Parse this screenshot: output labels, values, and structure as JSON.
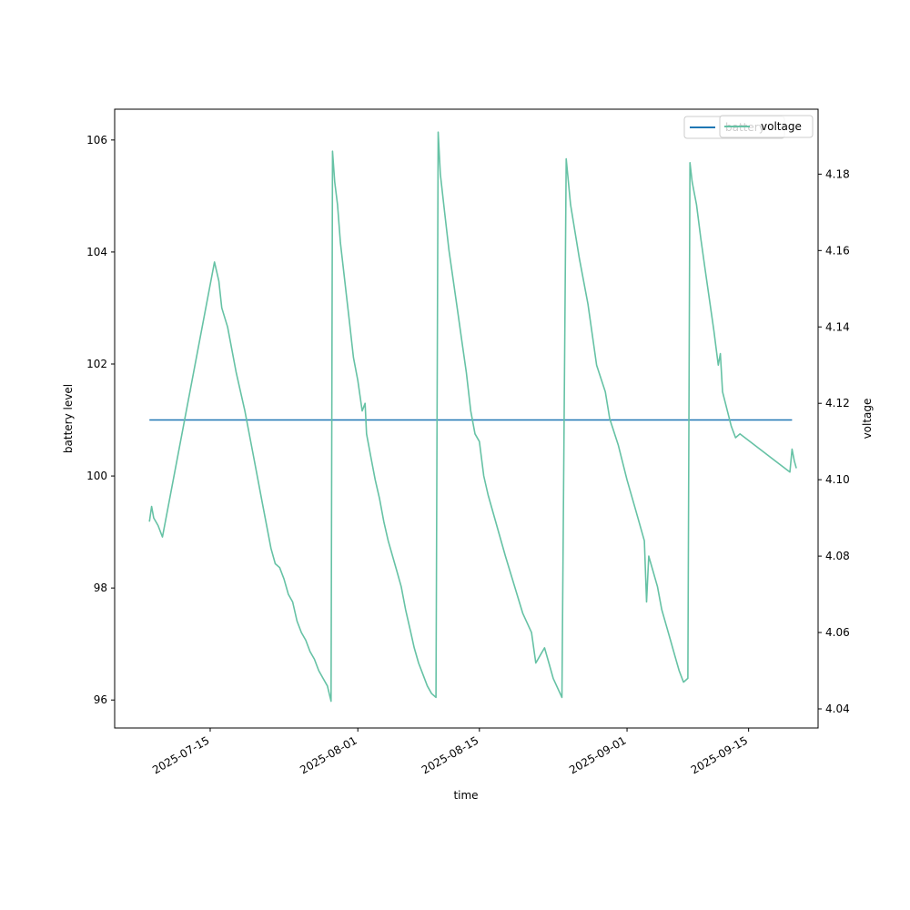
{
  "chart_data": {
    "type": "line",
    "xlabel": "time",
    "ylabel_left": "battery level",
    "ylabel_right": "voltage",
    "x_ticks": [
      "2025-07-15",
      "2025-08-01",
      "2025-08-15",
      "2025-09-01",
      "2025-09-15"
    ],
    "y_left_ticks": [
      "96",
      "98",
      "100",
      "102",
      "104",
      "106"
    ],
    "y_right_ticks": [
      "4.04",
      "4.06",
      "4.08",
      "4.10",
      "4.12",
      "4.14",
      "4.16",
      "4.18"
    ],
    "x_range": [
      "2025-07-04",
      "2025-09-23"
    ],
    "y_left_range": [
      95.5,
      106.55
    ],
    "y_right_range": [
      4.035,
      4.197
    ],
    "legend": {
      "placement": "top-right",
      "entries": [
        "battery",
        "voltage"
      ]
    },
    "colors": {
      "battery": "#1f77b4",
      "voltage": "#66c2a5"
    },
    "series": [
      {
        "name": "battery",
        "axis": "left",
        "points": [
          [
            "2025-07-08",
            101
          ],
          [
            "2025-09-20",
            101
          ]
        ]
      },
      {
        "name": "voltage",
        "axis": "right",
        "points": [
          [
            "2025-07-08",
            4.089
          ],
          [
            "2025-07-08 06:00",
            4.093
          ],
          [
            "2025-07-08 12:00",
            4.09
          ],
          [
            "2025-07-09",
            4.088
          ],
          [
            "2025-07-09 12:00",
            4.085
          ],
          [
            "2025-07-15 12:00",
            4.157
          ],
          [
            "2025-07-16",
            4.152
          ],
          [
            "2025-07-16 08:00",
            4.145
          ],
          [
            "2025-07-17",
            4.14
          ],
          [
            "2025-07-18",
            4.128
          ],
          [
            "2025-07-19",
            4.118
          ],
          [
            "2025-07-20",
            4.106
          ],
          [
            "2025-07-21",
            4.094
          ],
          [
            "2025-07-22",
            4.082
          ],
          [
            "2025-07-22 12:00",
            4.078
          ],
          [
            "2025-07-23",
            4.077
          ],
          [
            "2025-07-23 12:00",
            4.074
          ],
          [
            "2025-07-24",
            4.07
          ],
          [
            "2025-07-24 12:00",
            4.068
          ],
          [
            "2025-07-25",
            4.063
          ],
          [
            "2025-07-25 12:00",
            4.06
          ],
          [
            "2025-07-26",
            4.058
          ],
          [
            "2025-07-26 12:00",
            4.055
          ],
          [
            "2025-07-27",
            4.053
          ],
          [
            "2025-07-27 12:00",
            4.05
          ],
          [
            "2025-07-28",
            4.048
          ],
          [
            "2025-07-28 12:00",
            4.046
          ],
          [
            "2025-07-28 22:00",
            4.042
          ],
          [
            "2025-07-29 02:00",
            4.186
          ],
          [
            "2025-07-29 08:00",
            4.178
          ],
          [
            "2025-07-29 16:00",
            4.172
          ],
          [
            "2025-07-30",
            4.162
          ],
          [
            "2025-07-30 12:00",
            4.152
          ],
          [
            "2025-07-31",
            4.142
          ],
          [
            "2025-07-31 12:00",
            4.132
          ],
          [
            "2025-08-01",
            4.126
          ],
          [
            "2025-08-01 12:00",
            4.118
          ],
          [
            "2025-08-01 20:00",
            4.12
          ],
          [
            "2025-08-02",
            4.112
          ],
          [
            "2025-08-02 12:00",
            4.106
          ],
          [
            "2025-08-03",
            4.1
          ],
          [
            "2025-08-03 12:00",
            4.095
          ],
          [
            "2025-08-04",
            4.089
          ],
          [
            "2025-08-04 12:00",
            4.084
          ],
          [
            "2025-08-05",
            4.08
          ],
          [
            "2025-08-05 12:00",
            4.076
          ],
          [
            "2025-08-06",
            4.072
          ],
          [
            "2025-08-06 12:00",
            4.066
          ],
          [
            "2025-08-07",
            4.061
          ],
          [
            "2025-08-07 12:00",
            4.056
          ],
          [
            "2025-08-08",
            4.052
          ],
          [
            "2025-08-08 12:00",
            4.049
          ],
          [
            "2025-08-09",
            4.046
          ],
          [
            "2025-08-09 12:00",
            4.044
          ],
          [
            "2025-08-10",
            4.043
          ],
          [
            "2025-08-10 06:00",
            4.191
          ],
          [
            "2025-08-10 12:00",
            4.18
          ],
          [
            "2025-08-11",
            4.17
          ],
          [
            "2025-08-11 12:00",
            4.16
          ],
          [
            "2025-08-12",
            4.152
          ],
          [
            "2025-08-12 12:00",
            4.144
          ],
          [
            "2025-08-13",
            4.136
          ],
          [
            "2025-08-13 12:00",
            4.128
          ],
          [
            "2025-08-14",
            4.118
          ],
          [
            "2025-08-14 12:00",
            4.112
          ],
          [
            "2025-08-15",
            4.11
          ],
          [
            "2025-08-15 12:00",
            4.101
          ],
          [
            "2025-08-16",
            4.096
          ],
          [
            "2025-08-18",
            4.08
          ],
          [
            "2025-08-20",
            4.065
          ],
          [
            "2025-08-21",
            4.06
          ],
          [
            "2025-08-21 12:00",
            4.052
          ],
          [
            "2025-08-22",
            4.054
          ],
          [
            "2025-08-22 12:00",
            4.056
          ],
          [
            "2025-08-23",
            4.052
          ],
          [
            "2025-08-23 12:00",
            4.048
          ],
          [
            "2025-08-24 12:00",
            4.043
          ],
          [
            "2025-08-25",
            4.184
          ],
          [
            "2025-08-25 12:00",
            4.172
          ],
          [
            "2025-08-26 12:00",
            4.158
          ],
          [
            "2025-08-27 12:00",
            4.146
          ],
          [
            "2025-08-28 12:00",
            4.13
          ],
          [
            "2025-08-29 12:00",
            4.123
          ],
          [
            "2025-08-30",
            4.116
          ],
          [
            "2025-08-31",
            4.109
          ],
          [
            "2025-09-01",
            4.1
          ],
          [
            "2025-09-02",
            4.092
          ],
          [
            "2025-09-03",
            4.084
          ],
          [
            "2025-09-03 06:00",
            4.068
          ],
          [
            "2025-09-03 12:00",
            4.08
          ],
          [
            "2025-09-04",
            4.076
          ],
          [
            "2025-09-04 12:00",
            4.072
          ],
          [
            "2025-09-05",
            4.066
          ],
          [
            "2025-09-05 12:00",
            4.062
          ],
          [
            "2025-09-06",
            4.058
          ],
          [
            "2025-09-06 12:00",
            4.054
          ],
          [
            "2025-09-07",
            4.05
          ],
          [
            "2025-09-07 12:00",
            4.047
          ],
          [
            "2025-09-08",
            4.048
          ],
          [
            "2025-09-08 06:00",
            4.183
          ],
          [
            "2025-09-08 12:00",
            4.178
          ],
          [
            "2025-09-09",
            4.172
          ],
          [
            "2025-09-09 12:00",
            4.163
          ],
          [
            "2025-09-10",
            4.155
          ],
          [
            "2025-09-10 12:00",
            4.147
          ],
          [
            "2025-09-11",
            4.139
          ],
          [
            "2025-09-11 12:00",
            4.13
          ],
          [
            "2025-09-11 18:00",
            4.133
          ],
          [
            "2025-09-12",
            4.123
          ],
          [
            "2025-09-13",
            4.114
          ],
          [
            "2025-09-13 12:00",
            4.111
          ],
          [
            "2025-09-14",
            4.112
          ],
          [
            "2025-09-19 18:00",
            4.102
          ],
          [
            "2025-09-20",
            4.108
          ],
          [
            "2025-09-20 06:00",
            4.105
          ],
          [
            "2025-09-20 12:00",
            4.103
          ]
        ]
      }
    ]
  }
}
